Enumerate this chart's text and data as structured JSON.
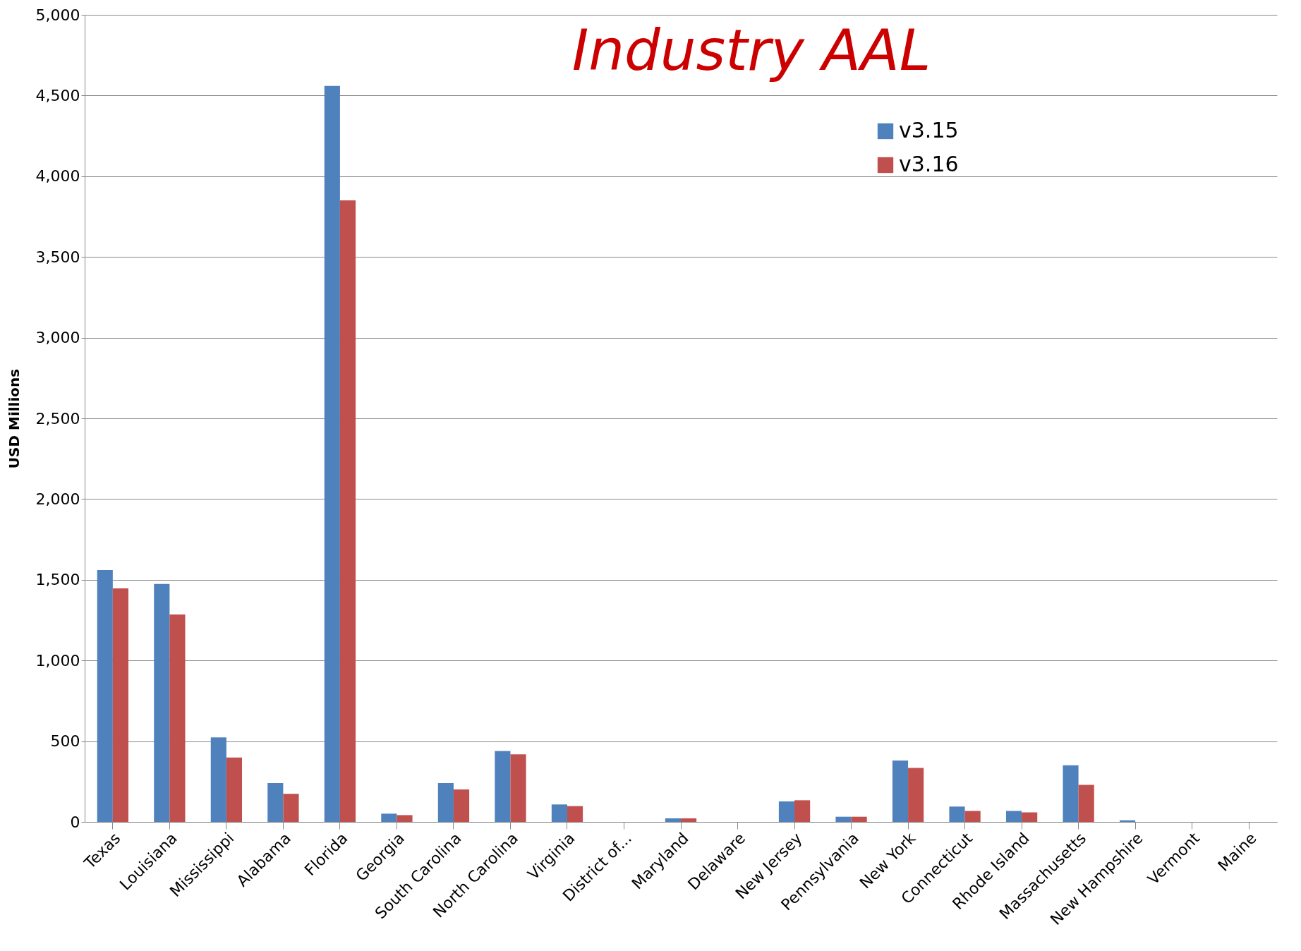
{
  "chart_data": {
    "type": "bar",
    "title": "Industry AAL",
    "ylabel": "USD Millions",
    "categories": [
      "Texas",
      "Louisiana",
      "Mississippi",
      "Alabama",
      "Florida",
      "Georgia",
      "South Carolina",
      "North Carolina",
      "Virginia",
      "District of...",
      "Maryland",
      "Delaware",
      "New Jersey",
      "Pennsylvania",
      "New York",
      "Connecticut",
      "Rhode Island",
      "Massachusetts",
      "New Hampshire",
      "Vermont",
      "Maine"
    ],
    "series": [
      {
        "name": "v3.15",
        "color": "#4f81bd",
        "values": [
          1560,
          1474,
          523,
          240,
          4560,
          51,
          240,
          439,
          108,
          0,
          22,
          0,
          127,
          32,
          380,
          95,
          68,
          351,
          10,
          0,
          0
        ]
      },
      {
        "name": "v3.16",
        "color": "#c0504d",
        "values": [
          1447,
          1285,
          399,
          174,
          3850,
          42,
          201,
          419,
          98,
          0,
          22,
          0,
          134,
          32,
          334,
          68,
          59,
          229,
          0,
          0,
          0
        ]
      }
    ],
    "ylim": [
      0,
      5000
    ],
    "yticks": [
      0,
      500,
      {
        "value": 1000,
        "label": "1,000"
      },
      {
        "value": 1500,
        "label": "1,500"
      },
      {
        "value": 2000,
        "label": "2,000"
      },
      {
        "value": 2500,
        "label": "2,500"
      },
      {
        "value": 3000,
        "label": "3,000"
      },
      {
        "value": 3500,
        "label": "3,500"
      },
      {
        "value": 4000,
        "label": "4,000"
      },
      {
        "value": 4500,
        "label": "4,500"
      },
      {
        "value": 5000,
        "label": "5,000"
      }
    ],
    "grid": "y",
    "legend": "top right"
  }
}
